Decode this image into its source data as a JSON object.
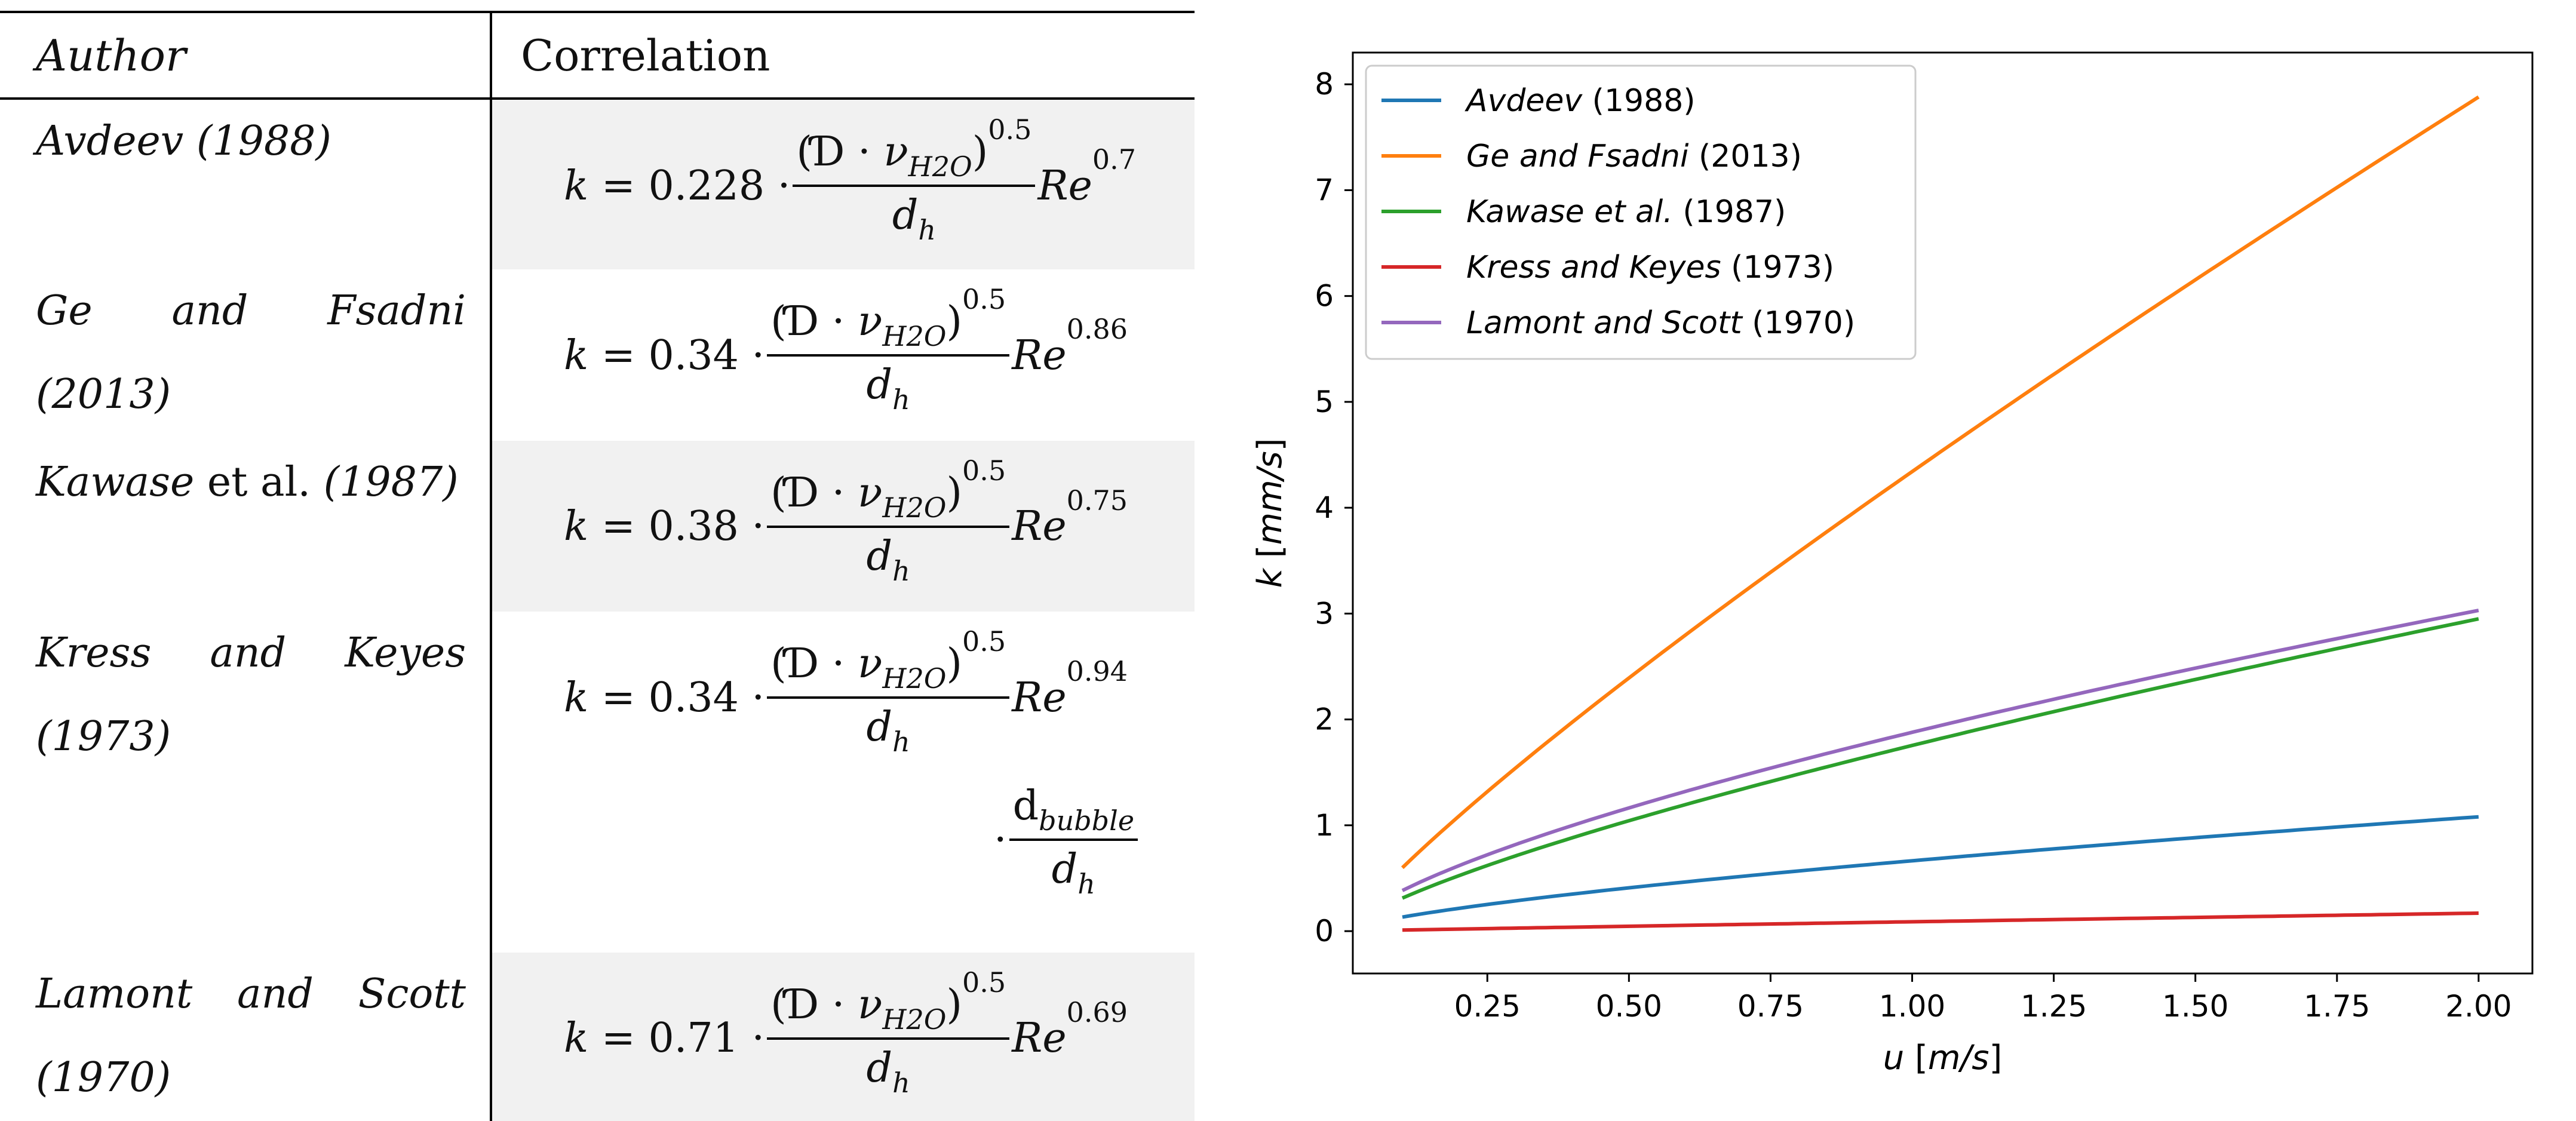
{
  "table": {
    "headers": {
      "author": "Author",
      "correlation": "Correlation"
    },
    "rows": [
      {
        "author_text": "Avdeev (1988)",
        "coef": "0.228",
        "re_exp": "0.7"
      },
      {
        "author_text": "Ge and Fsadni (2013)",
        "coef": "0.34",
        "re_exp": "0.86"
      },
      {
        "author_prefix": "Kawase",
        "author_mid": " et al. ",
        "author_suffix": "(1987)",
        "coef": "0.38",
        "re_exp": "0.75"
      },
      {
        "author_text": "Kress and Keyes (1973)",
        "coef": "0.34",
        "re_exp": "0.94",
        "extra_num": "bubble",
        "extra_den": "h"
      },
      {
        "author_text": "Lamont and Scott (1970)",
        "coef": "0.71",
        "re_exp": "0.69"
      }
    ],
    "formula": {
      "lhs": "k",
      "equals": "=",
      "dot": "·",
      "numerator_open": "(",
      "diffusivity": "Ɗ",
      "nu": "ν",
      "nu_sub": "H2O",
      "numerator_close": ")",
      "num_exp": "0.5",
      "den_var": "d",
      "den_sub": "h",
      "re": "Re"
    }
  },
  "chart_data": {
    "type": "line",
    "xlabel": "u [m/s]",
    "ylabel": "k [mm/s]",
    "xlim": [
      0.0125,
      2.095
    ],
    "ylim": [
      -0.4,
      8.3
    ],
    "xticks": [
      0.25,
      0.5,
      0.75,
      1.0,
      1.25,
      1.5,
      1.75,
      2.0
    ],
    "xtick_labels": [
      "0.25",
      "0.50",
      "0.75",
      "1.00",
      "1.25",
      "1.50",
      "1.75",
      "2.00"
    ],
    "yticks": [
      0,
      1,
      2,
      3,
      4,
      5,
      6,
      7,
      8
    ],
    "ytick_labels": [
      "0",
      "1",
      "2",
      "3",
      "4",
      "5",
      "6",
      "7",
      "8"
    ],
    "legend_position": "top-left",
    "series": [
      {
        "name": "Avdeev (1988)",
        "label_it": "Avdeev",
        "label_up": " (1988)",
        "color": "#1f77b4",
        "exponent": 0.7,
        "k_at_2": 1.08,
        "x_start": 0.1
      },
      {
        "name": "Ge and Fsadni (2013)",
        "label_it": "Ge and Fsadni",
        "label_up": " (2013)",
        "color": "#ff7f0e",
        "exponent": 0.86,
        "k_at_2": 7.88,
        "x_start": 0.1
      },
      {
        "name": "Kawase et al. (1987)",
        "label_it": "Kawase et al.",
        "label_up": "  (1987)",
        "color": "#2ca02c",
        "exponent": 0.75,
        "k_at_2": 2.95,
        "x_start": 0.1
      },
      {
        "name": "Kress and Keyes (1973)",
        "label_it": "Kress and Keyes",
        "label_up": " (1973)",
        "color": "#d62728",
        "exponent": 0.94,
        "k_at_2": 0.17,
        "x_start": 0.1
      },
      {
        "name": "Lamont and Scott (1970)",
        "label_it": "Lamont and Scott",
        "label_up": " (1970)",
        "color": "#9467bd",
        "exponent": 0.69,
        "k_at_2": 3.03,
        "x_start": 0.1
      }
    ]
  }
}
